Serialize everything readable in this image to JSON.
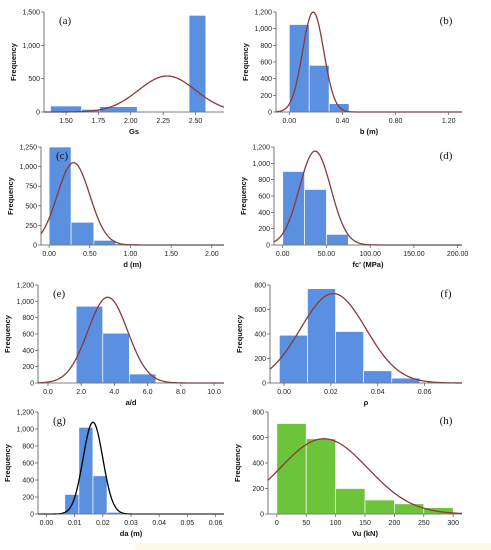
{
  "chart_data": [
    {
      "type": "bar",
      "panel_label": "(a)",
      "xlabel": "Gs",
      "ylabel": "Frequency",
      "bar_color": "#5b8fe0",
      "curve_color": "#8b3a3a",
      "xlim": [
        1.33,
        2.72
      ],
      "ylim": [
        0,
        1500
      ],
      "x_ticks": [
        1.5,
        1.75,
        2.0,
        2.25,
        2.5
      ],
      "x_tick_labels": [
        "1.50",
        "1.75",
        "2.00",
        "2.25",
        "2.50"
      ],
      "y_ticks": [
        0,
        500,
        1000,
        1500
      ],
      "y_tick_labels": [
        "0",
        "500",
        "1,000",
        "1,500"
      ],
      "bars": [
        {
          "x0": 1.38,
          "x1": 1.62,
          "value": 90
        },
        {
          "x0": 1.62,
          "x1": 1.76,
          "value": 40
        },
        {
          "x0": 1.76,
          "x1": 2.05,
          "value": 80
        },
        {
          "x0": 2.05,
          "x1": 2.32,
          "value": 8
        },
        {
          "x0": 2.45,
          "x1": 2.58,
          "value": 1450
        }
      ],
      "normal_curve": {
        "mean": 2.28,
        "sd": 0.22,
        "peak": 540
      }
    },
    {
      "type": "bar",
      "panel_label": "(b)",
      "xlabel": "b (m)",
      "ylabel": "Frequency",
      "bar_color": "#5b8fe0",
      "curve_color": "#8b3a3a",
      "xlim": [
        -0.1,
        1.3
      ],
      "ylim": [
        0,
        1200
      ],
      "x_ticks": [
        0,
        0.4,
        0.8,
        1.2
      ],
      "x_tick_labels": [
        "0.00",
        "0.40",
        "0.80",
        "1.20"
      ],
      "y_ticks": [
        0,
        200,
        400,
        600,
        800,
        1000,
        1200
      ],
      "y_tick_labels": [
        "0",
        "200",
        "400",
        "600",
        "800",
        "1,000",
        "1,200"
      ],
      "bars": [
        {
          "x0": 0.0,
          "x1": 0.15,
          "value": 1050
        },
        {
          "x0": 0.15,
          "x1": 0.3,
          "value": 560
        },
        {
          "x0": 0.3,
          "x1": 0.45,
          "value": 100
        },
        {
          "x0": 0.45,
          "x1": 0.6,
          "value": 8
        }
      ],
      "normal_curve": {
        "mean": 0.18,
        "sd": 0.08,
        "peak": 1200
      }
    },
    {
      "type": "bar",
      "panel_label": "(c)",
      "xlabel": "d (m)",
      "ylabel": "Frequency",
      "bar_color": "#5b8fe0",
      "curve_color": "#8b3a3a",
      "xlim": [
        -0.1,
        2.15
      ],
      "ylim": [
        0,
        1250
      ],
      "x_ticks": [
        0,
        0.5,
        1.0,
        1.5,
        2.0
      ],
      "x_tick_labels": [
        "0.00",
        "0.50",
        "1.00",
        "1.50",
        "2.00"
      ],
      "y_ticks": [
        0,
        250,
        500,
        750,
        1000,
        1250
      ],
      "y_tick_labels": [
        "0",
        "250",
        "500",
        "750",
        "1,000",
        "1,250"
      ],
      "bars": [
        {
          "x0": 0.0,
          "x1": 0.27,
          "value": 1350
        },
        {
          "x0": 0.27,
          "x1": 0.55,
          "value": 290
        },
        {
          "x0": 0.55,
          "x1": 0.82,
          "value": 60
        },
        {
          "x0": 0.82,
          "x1": 1.1,
          "value": 15
        },
        {
          "x0": 1.1,
          "x1": 1.37,
          "value": 5
        },
        {
          "x0": 1.37,
          "x1": 1.65,
          "value": 4
        }
      ],
      "normal_curve": {
        "mean": 0.3,
        "sd": 0.2,
        "peak": 1050
      }
    },
    {
      "type": "bar",
      "panel_label": "(d)",
      "xlabel": "fc' (MPa)",
      "ylabel": "Frequency",
      "bar_color": "#5b8fe0",
      "curve_color": "#8b3a3a",
      "xlim": [
        -10,
        205
      ],
      "ylim": [
        0,
        1200
      ],
      "x_ticks": [
        0,
        50,
        100,
        150,
        200
      ],
      "x_tick_labels": [
        "0.00",
        "50.00",
        "100.00",
        "150.00",
        "200.00"
      ],
      "y_ticks": [
        0,
        200,
        400,
        600,
        800,
        1000,
        1200
      ],
      "y_tick_labels": [
        "0",
        "200",
        "400",
        "600",
        "800",
        "1,000",
        "1,200"
      ],
      "bars": [
        {
          "x0": 0,
          "x1": 25,
          "value": 900
        },
        {
          "x0": 25,
          "x1": 50,
          "value": 680
        },
        {
          "x0": 50,
          "x1": 75,
          "value": 130
        },
        {
          "x0": 75,
          "x1": 100,
          "value": 10
        }
      ],
      "normal_curve": {
        "mean": 37,
        "sd": 18,
        "peak": 1150
      }
    },
    {
      "type": "bar",
      "panel_label": "(e)",
      "xlabel": "a/d",
      "ylabel": "Frequency",
      "bar_color": "#5b8fe0",
      "curve_color": "#8b3a3a",
      "xlim": [
        -0.6,
        10.6
      ],
      "ylim": [
        0,
        1200
      ],
      "x_ticks": [
        0,
        2,
        4,
        6,
        8,
        10
      ],
      "x_tick_labels": [
        "0.0",
        "2.0",
        "4.0",
        "6.0",
        "8.0",
        "10.0"
      ],
      "y_ticks": [
        0,
        200,
        400,
        600,
        800,
        1000,
        1200
      ],
      "y_tick_labels": [
        "0",
        "200",
        "400",
        "600",
        "800",
        "1,000",
        "1,200"
      ],
      "bars": [
        {
          "x0": 1.7,
          "x1": 3.3,
          "value": 940
        },
        {
          "x0": 3.3,
          "x1": 4.9,
          "value": 610
        },
        {
          "x0": 4.9,
          "x1": 6.5,
          "value": 110
        },
        {
          "x0": 6.5,
          "x1": 8.1,
          "value": 10
        }
      ],
      "normal_curve": {
        "mean": 3.6,
        "sd": 1.2,
        "peak": 1050
      }
    },
    {
      "type": "bar",
      "panel_label": "(f)",
      "xlabel": "ρ",
      "ylabel": "Frequency",
      "bar_color": "#5b8fe0",
      "curve_color": "#8b3a3a",
      "xlim": [
        -0.006,
        0.076
      ],
      "ylim": [
        0,
        800
      ],
      "x_ticks": [
        0,
        0.02,
        0.04,
        0.06
      ],
      "x_tick_labels": [
        "0.00",
        "0.02",
        "0.04",
        "0.06"
      ],
      "y_ticks": [
        0,
        200,
        400,
        600,
        800
      ],
      "y_tick_labels": [
        "0",
        "200",
        "400",
        "600",
        "800"
      ],
      "bars": [
        {
          "x0": -0.002,
          "x1": 0.01,
          "value": 390
        },
        {
          "x0": 0.01,
          "x1": 0.022,
          "value": 770
        },
        {
          "x0": 0.022,
          "x1": 0.034,
          "value": 420
        },
        {
          "x0": 0.034,
          "x1": 0.046,
          "value": 100
        },
        {
          "x0": 0.046,
          "x1": 0.058,
          "value": 40
        }
      ],
      "normal_curve": {
        "mean": 0.021,
        "sd": 0.014,
        "peak": 730
      }
    },
    {
      "type": "bar",
      "panel_label": "(g)",
      "xlabel": "da (m)",
      "ylabel": "Frequency",
      "bar_color": "#5b8fe0",
      "curve_color": "#000000",
      "xlim": [
        -0.003,
        0.063
      ],
      "ylim": [
        0,
        1200
      ],
      "x_ticks": [
        0,
        0.01,
        0.02,
        0.03,
        0.04,
        0.05,
        0.06
      ],
      "x_tick_labels": [
        "0.00",
        "0.01",
        "0.02",
        "0.03",
        "0.04",
        "0.05",
        "0.06"
      ],
      "y_ticks": [
        0,
        200,
        400,
        600,
        800,
        1000,
        1200
      ],
      "y_tick_labels": [
        "0",
        "200",
        "400",
        "600",
        "800",
        "1,000",
        "1,200"
      ],
      "bars": [
        {
          "x0": 0.0065,
          "x1": 0.0115,
          "value": 230
        },
        {
          "x0": 0.0115,
          "x1": 0.0165,
          "value": 1020
        },
        {
          "x0": 0.0165,
          "x1": 0.0215,
          "value": 450
        },
        {
          "x0": 0.0215,
          "x1": 0.0265,
          "value": 20
        }
      ],
      "normal_curve": {
        "mean": 0.0165,
        "sd": 0.0035,
        "peak": 1080
      }
    },
    {
      "type": "bar",
      "panel_label": "(h)",
      "xlabel": "Vu (kN)",
      "ylabel": "Frequency",
      "bar_color": "#6cc43a",
      "curve_color": "#8b3a3a",
      "xlim": [
        -15,
        315
      ],
      "ylim": [
        0,
        800
      ],
      "x_ticks": [
        0,
        50,
        100,
        150,
        200,
        250,
        300
      ],
      "x_tick_labels": [
        "0",
        "50",
        "100",
        "150",
        "200",
        "250",
        "300"
      ],
      "y_ticks": [
        0,
        200,
        400,
        600,
        800
      ],
      "y_tick_labels": [
        "0",
        "200",
        "400",
        "600",
        "800"
      ],
      "bars": [
        {
          "x0": 0,
          "x1": 50,
          "value": 710
        },
        {
          "x0": 50,
          "x1": 100,
          "value": 590
        },
        {
          "x0": 100,
          "x1": 150,
          "value": 200
        },
        {
          "x0": 150,
          "x1": 200,
          "value": 110
        },
        {
          "x0": 200,
          "x1": 250,
          "value": 80
        },
        {
          "x0": 250,
          "x1": 300,
          "value": 50
        }
      ],
      "normal_curve": {
        "mean": 80,
        "sd": 75,
        "peak": 590
      }
    }
  ]
}
